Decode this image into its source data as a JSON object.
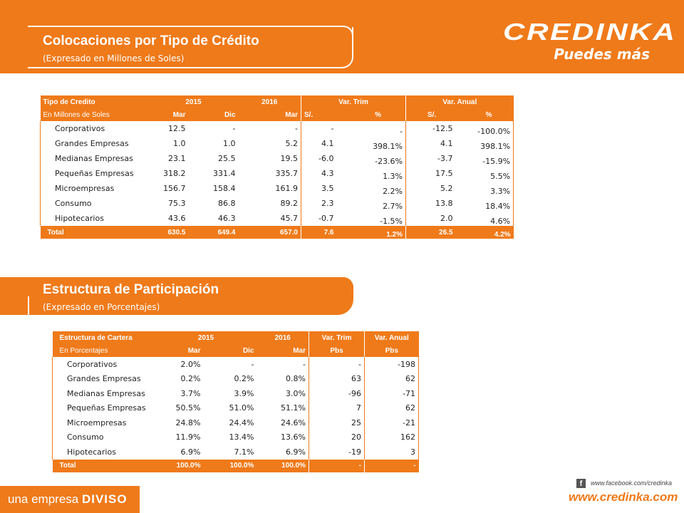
{
  "header": {
    "title": "Colocaciones por Tipo de Crédito",
    "subtitle": "(Expresado en Millones de Soles)"
  },
  "logo": {
    "word": "CREDINKA",
    "tagline": "Puedes más"
  },
  "table1": {
    "head": {
      "label1": "Tipo de Credito",
      "label2": "En Millones de Soles",
      "y2015": "2015",
      "y2016": "2016",
      "var_trim": "Var. Trim",
      "var_anual": "Var. Anual",
      "mar1": "Mar",
      "dic": "Dic",
      "mar2": "Mar",
      "soles1": "S/.",
      "pct1": "%",
      "soles2": "S/.",
      "pct2": "%"
    },
    "rows": [
      [
        "Corporativos",
        "12.5",
        "-",
        "-",
        "-",
        "-",
        "-12.5",
        "-100.0%"
      ],
      [
        "Grandes Empresas",
        "1.0",
        "1.0",
        "5.2",
        "4.1",
        "398.1%",
        "4.1",
        "398.1%"
      ],
      [
        "Medianas Empresas",
        "23.1",
        "25.5",
        "19.5",
        "-6.0",
        "-23.6%",
        "-3.7",
        "-15.9%"
      ],
      [
        "Pequeñas Empresas",
        "318.2",
        "331.4",
        "335.7",
        "4.3",
        "1.3%",
        "17.5",
        "5.5%"
      ],
      [
        "Microempresas",
        "156.7",
        "158.4",
        "161.9",
        "3.5",
        "2.2%",
        "5.2",
        "3.3%"
      ],
      [
        "Consumo",
        "75.3",
        "86.8",
        "89.2",
        "2.3",
        "2.7%",
        "13.8",
        "18.4%"
      ],
      [
        "Hipotecarios",
        "43.6",
        "46.3",
        "45.7",
        "-0.7",
        "-1.5%",
        "2.0",
        "4.6%"
      ]
    ],
    "total": [
      "Total",
      "630.5",
      "649.4",
      "657.0",
      "7.6",
      "1.2%",
      "26.5",
      "4.2%"
    ]
  },
  "section2": {
    "title": "Estructura de Participación",
    "subtitle": "(Expresado en Porcentajes)"
  },
  "table2": {
    "head": {
      "label1": "Estructura de Cartera",
      "label2": "En Porcentajes",
      "y2015": "2015",
      "y2016": "2016",
      "var_trim": "Var. Trim",
      "var_anual": "Var. Anual",
      "mar1": "Mar",
      "dic": "Dic",
      "mar2": "Mar",
      "pbs1": "Pbs",
      "pbs2": "Pbs"
    },
    "rows": [
      [
        "Corporativos",
        "2.0%",
        "-",
        "-",
        "-",
        "-198"
      ],
      [
        "Grandes Empresas",
        "0.2%",
        "0.2%",
        "0.8%",
        "63",
        "62"
      ],
      [
        "Medianas Empresas",
        "3.7%",
        "3.9%",
        "3.0%",
        "-96",
        "-71"
      ],
      [
        "Pequeñas Empresas",
        "50.5%",
        "51.0%",
        "51.1%",
        "7",
        "62"
      ],
      [
        "Microempresas",
        "24.8%",
        "24.4%",
        "24.6%",
        "25",
        "-21"
      ],
      [
        "Consumo",
        "11.9%",
        "13.4%",
        "13.6%",
        "20",
        "162"
      ],
      [
        "Hipotecarios",
        "6.9%",
        "7.1%",
        "6.9%",
        "-19",
        "3"
      ]
    ],
    "total": [
      "Total",
      "100.0%",
      "100.0%",
      "100.0%",
      "-",
      "-"
    ]
  },
  "footer": {
    "prefix": "una empresa",
    "brand": "DIVISO",
    "facebook_icon": "f",
    "facebook": "www.facebook.com/credinka",
    "site": "www.credinka.com"
  },
  "colors": {
    "accent": "#ef7a1a"
  }
}
